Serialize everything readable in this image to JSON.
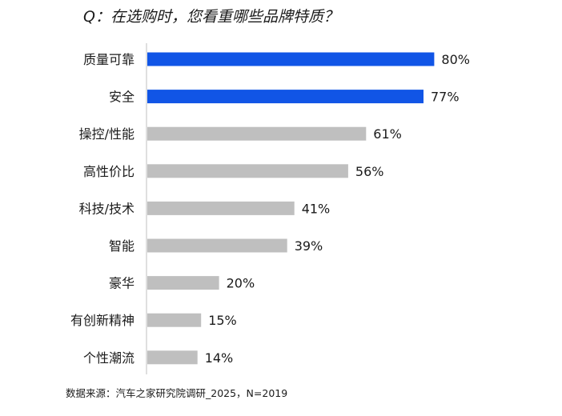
{
  "title": "Q：在选购时，您看重哪些品牌特质？",
  "source": "数据来源：汽车之家研究院调研_2025，N=2019",
  "colors": {
    "highlight": "#1155e6",
    "default": "#bfbfbf",
    "axis": "#bfbfbf",
    "text": "#1a1a1a"
  },
  "chart_data": {
    "type": "bar",
    "orientation": "horizontal",
    "categories": [
      "质量可靠",
      "安全",
      "操控/性能",
      "高性价比",
      "科技/技术",
      "智能",
      "豪华",
      "有创新精神",
      "个性潮流"
    ],
    "values": [
      80,
      77,
      61,
      56,
      41,
      39,
      20,
      15,
      14
    ],
    "value_labels": [
      "80%",
      "77%",
      "61%",
      "56%",
      "41%",
      "39%",
      "20%",
      "15%",
      "14%"
    ],
    "highlighted": [
      true,
      true,
      false,
      false,
      false,
      false,
      false,
      false,
      false
    ],
    "unit": "%",
    "xlim": [
      0,
      100
    ],
    "grid": false,
    "legend": "none"
  }
}
